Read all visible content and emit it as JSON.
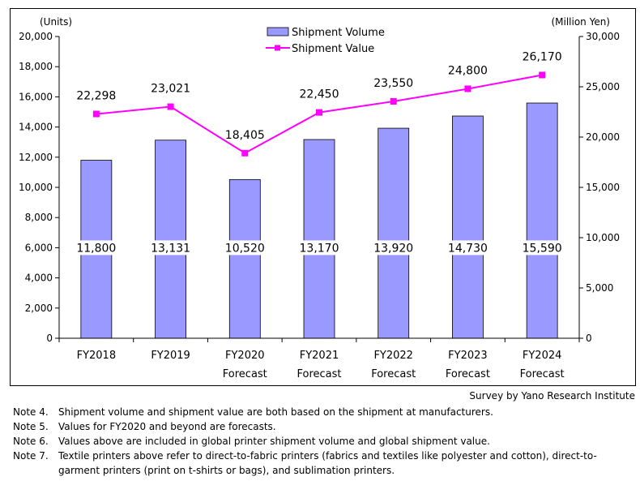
{
  "chart_data": {
    "type": "bar+line",
    "categories": [
      "FY2018",
      "FY2019",
      "FY2020",
      "FY2021",
      "FY2022",
      "FY2023",
      "FY2024"
    ],
    "category_sublabels": [
      "",
      "",
      "Forecast",
      "Forecast",
      "Forecast",
      "Forecast",
      "Forecast"
    ],
    "series": [
      {
        "name": "Shipment Volume",
        "type": "bar",
        "axis": "left",
        "values": [
          11800,
          13131,
          10520,
          13170,
          13920,
          14730,
          15590
        ],
        "labels": [
          "11,800",
          "13,131",
          "10,520",
          "13,170",
          "13,920",
          "14,730",
          "15,590"
        ],
        "color": "#9999ff"
      },
      {
        "name": "Shipment Value",
        "type": "line",
        "axis": "right",
        "values": [
          22298,
          23021,
          18405,
          22450,
          23550,
          24800,
          26170
        ],
        "labels": [
          "22,298",
          "23,021",
          "18,405",
          "22,450",
          "23,550",
          "24,800",
          "26,170"
        ],
        "color": "#ff00ff"
      }
    ],
    "y_left": {
      "unit": "(Units)",
      "min": 0,
      "max": 20000,
      "ticks": [
        0,
        2000,
        4000,
        6000,
        8000,
        10000,
        12000,
        14000,
        16000,
        18000,
        20000
      ],
      "tick_labels": [
        "0",
        "2,000",
        "4,000",
        "6,000",
        "8,000",
        "10,000",
        "12,000",
        "14,000",
        "16,000",
        "18,000",
        "20,000"
      ]
    },
    "y_right": {
      "unit": "(Million Yen)",
      "min": 0,
      "max": 30000,
      "ticks": [
        0,
        5000,
        10000,
        15000,
        20000,
        25000,
        30000
      ],
      "tick_labels": [
        "0",
        "5,000",
        "10,000",
        "15,000",
        "20,000",
        "25,000",
        "30,000"
      ]
    },
    "legend_position": "top-center",
    "grid": false
  },
  "source": "Survey by Yano Research Institute",
  "notes": [
    {
      "label": "Note 4.",
      "text": "Shipment volume and shipment value are both based on the shipment at manufacturers."
    },
    {
      "label": "Note 5.",
      "text": "Values for FY2020 and beyond are forecasts."
    },
    {
      "label": "Note 6.",
      "text": "Values above are included in global printer shipment volume and global shipment value."
    },
    {
      "label": "Note 7.",
      "text": "Textile printers above refer to direct-to-fabric printers (fabrics and textiles like polyester and cotton), direct-to-garment printers (print on t-shirts or bags), and sublimation printers."
    }
  ]
}
